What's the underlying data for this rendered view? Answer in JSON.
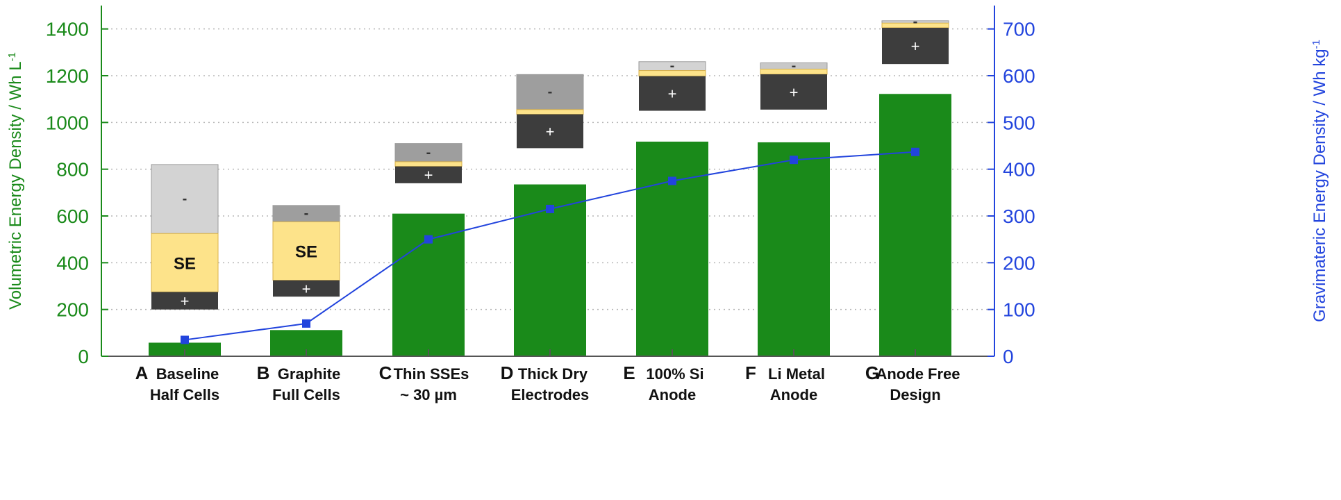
{
  "chart_data": {
    "type": "bar",
    "categories": [
      {
        "letter": "A",
        "line1": "Baseline",
        "line2": "Half Cells"
      },
      {
        "letter": "B",
        "line1": "Graphite",
        "line2": "Full Cells"
      },
      {
        "letter": "C",
        "line1": "Thin SSEs",
        "line2": "~ 30 µm"
      },
      {
        "letter": "D",
        "line1": "Thick Dry",
        "line2": "Electrodes"
      },
      {
        "letter": "E",
        "line1": "100% Si",
        "line2": "Anode"
      },
      {
        "letter": "F",
        "line1": "Li Metal",
        "line2": "Anode"
      },
      {
        "letter": "G",
        "line1": "Anode Free",
        "line2": "Design"
      }
    ],
    "series": [
      {
        "axis": "left",
        "kind": "bar",
        "color": "#1a8a1a",
        "values": [
          58,
          112,
          610,
          735,
          918,
          915,
          1122
        ]
      },
      {
        "axis": "right",
        "kind": "line",
        "color": "#2244dd",
        "values": [
          35,
          70,
          250,
          315,
          375,
          420,
          437
        ]
      }
    ],
    "ylabel": "Volumetric Energy Density / Wh L",
    "ylabel_sup": "-1",
    "ylabel_color": "#1a8a1a",
    "ylim": [
      0,
      1500
    ],
    "yticks": [
      "0",
      "200",
      "400",
      "600",
      "800",
      "1000",
      "1200",
      "1400"
    ],
    "y2label": "Gravimateric Energy Density / Wh kg",
    "y2label_sup": "-1",
    "y2label_color": "#2244dd",
    "y2lim": [
      0,
      750
    ],
    "y2ticks": [
      "0",
      "100",
      "200",
      "300",
      "400",
      "500",
      "600",
      "700"
    ],
    "grid": "horizontal dotted",
    "cell_stack_labels": {
      "anode": "-",
      "cathode": "+",
      "electrolyte": "SE"
    },
    "cell_stacks": [
      {
        "anode": [
          525,
          820
        ],
        "separator": [
          275,
          525
        ],
        "cathode": [
          200,
          275
        ],
        "se_label": true,
        "anode_color": "#d3d3d3"
      },
      {
        "anode": [
          575,
          645
        ],
        "separator": [
          325,
          575
        ],
        "cathode": [
          255,
          325
        ],
        "se_label": true,
        "anode_color": "#9e9e9e"
      },
      {
        "anode": [
          832,
          910
        ],
        "separator": [
          812,
          832
        ],
        "cathode": [
          740,
          812
        ],
        "se_label": false,
        "anode_color": "#9e9e9e"
      },
      {
        "anode": [
          1055,
          1205
        ],
        "separator": [
          1035,
          1055
        ],
        "cathode": [
          890,
          1035
        ],
        "se_label": false,
        "anode_color": "#9e9e9e"
      },
      {
        "anode": [
          1222,
          1260
        ],
        "separator": [
          1198,
          1222
        ],
        "cathode": [
          1050,
          1198
        ],
        "se_label": false,
        "anode_color": "#d3d3d3"
      },
      {
        "anode": [
          1228,
          1255
        ],
        "separator": [
          1206,
          1228
        ],
        "cathode": [
          1055,
          1206
        ],
        "se_label": false,
        "anode_color": "#c8c8c8"
      },
      {
        "anode": [
          1425,
          1435
        ],
        "separator": [
          1405,
          1425
        ],
        "cathode": [
          1250,
          1405
        ],
        "se_label": false,
        "anode_color": "#d3d3d3"
      }
    ]
  }
}
